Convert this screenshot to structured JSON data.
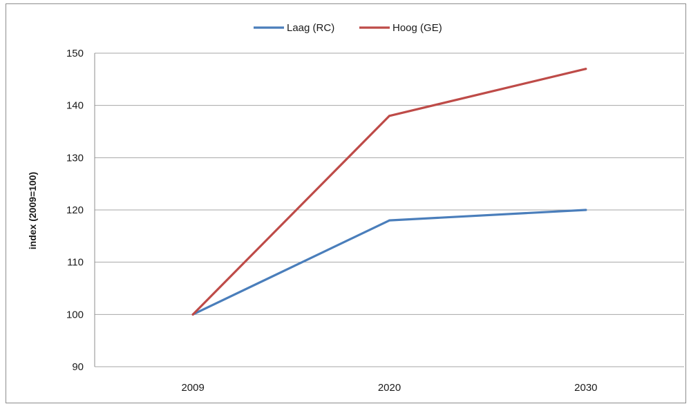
{
  "chart_data": {
    "type": "line",
    "title": "",
    "xlabel": "",
    "ylabel": "index (2009=100)",
    "categories": [
      "2009",
      "2020",
      "2030"
    ],
    "ylim": [
      90,
      150
    ],
    "yticks": [
      90,
      100,
      110,
      120,
      130,
      140,
      150
    ],
    "grid": true,
    "legend_position": "top",
    "series": [
      {
        "name": "Laag (RC)",
        "color": "#4a7ebb",
        "values": [
          100,
          118,
          120
        ]
      },
      {
        "name": "Hoog (GE)",
        "color": "#be4b48",
        "values": [
          100,
          138,
          147
        ]
      }
    ]
  }
}
